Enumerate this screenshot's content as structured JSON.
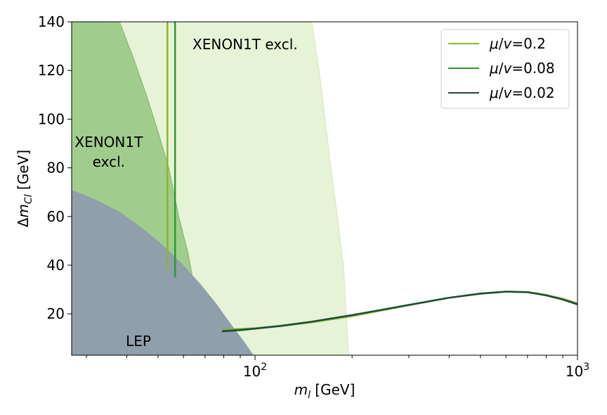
{
  "chart_data": {
    "type": "line",
    "x_scale": "log",
    "xlim": [
      27,
      1000
    ],
    "ylim": [
      3,
      140
    ],
    "xlabel": "m_l [GeV]",
    "xlabel_parts": {
      "m": "m",
      "sub": "l",
      "unit": " [GeV]"
    },
    "ylabel": "Δm_Cl [GeV]",
    "ylabel_parts": {
      "delta": "Δ",
      "m": "m",
      "sub": "Cl",
      "unit": " [GeV]"
    },
    "y_ticks": [
      20,
      40,
      60,
      80,
      100,
      120,
      140
    ],
    "x_major_ticks": [
      {
        "value": 100,
        "base": "10",
        "exp": "2"
      },
      {
        "value": 1000,
        "base": "10",
        "exp": "3"
      }
    ],
    "x_minor_ticks": [
      30,
      40,
      50,
      60,
      70,
      80,
      90,
      200,
      300,
      400,
      500,
      600,
      700,
      800,
      900
    ],
    "colors": {
      "mu_0_2": "#8db52d",
      "mu_0_08": "#2e9a2e",
      "mu_0_02": "#1e4a3a",
      "xenon_light": "#e7f3d7",
      "xenon_dark": "#a1cd8c",
      "lep": "#8f9fac"
    },
    "legend": {
      "position": "upper-right",
      "entries": [
        {
          "label_mu": "μ",
          "label_v": "v",
          "value": "=0.2",
          "color": "#8db52d"
        },
        {
          "label_mu": "μ",
          "label_v": "v",
          "value": "=0.08",
          "color": "#2e9a2e"
        },
        {
          "label_mu": "μ",
          "label_v": "v",
          "value": "=0.02",
          "color": "#1e4a3a"
        }
      ]
    },
    "series": [
      {
        "name": "μ/v=0.2",
        "color": "#8db52d",
        "x": [
          79,
          90,
          100,
          120,
          150,
          200,
          250,
          300,
          400,
          500,
          600,
          700,
          800,
          900,
          1000
        ],
        "y": [
          13.5,
          13.8,
          14.1,
          15.0,
          16.5,
          19.0,
          21.5,
          23.5,
          26.6,
          28.4,
          29.2,
          29.0,
          27.8,
          26.2,
          24.3
        ]
      },
      {
        "name": "μ/v=0.08",
        "color": "#2e9a2e",
        "x": [
          79,
          90,
          100,
          120,
          150,
          200,
          250,
          300,
          400,
          500,
          600,
          700,
          800,
          900,
          1000
        ],
        "y": [
          13.0,
          13.5,
          14.0,
          15.1,
          16.8,
          19.5,
          21.8,
          23.7,
          26.6,
          28.3,
          29.1,
          28.9,
          27.6,
          25.9,
          23.9
        ]
      },
      {
        "name": "μ/v=0.02",
        "color": "#1e4a3a",
        "x": [
          79,
          90,
          100,
          120,
          150,
          200,
          250,
          300,
          400,
          500,
          600,
          700,
          800,
          900,
          1000
        ],
        "y": [
          12.8,
          13.3,
          13.9,
          15.0,
          16.8,
          19.5,
          21.8,
          23.7,
          26.6,
          28.3,
          29.1,
          28.9,
          27.6,
          25.9,
          23.9
        ]
      }
    ],
    "vertical_lines": [
      {
        "name": "μ/v=0.2 vertical",
        "color": "#8db52d",
        "x": 53.5,
        "y_range": [
          38,
          140
        ]
      },
      {
        "name": "μ/v=0.08 vertical",
        "color": "#2e9a2e",
        "x": 56.5,
        "y_range": [
          35,
          140
        ]
      }
    ],
    "regions": [
      {
        "name": "XENON1T light exclusion",
        "color": "#e7f3d7",
        "boundary_x": [
          150,
          158,
          165,
          172,
          180,
          188,
          192,
          195
        ],
        "boundary_y": [
          140,
          120,
          100,
          80,
          60,
          40,
          20,
          3
        ]
      },
      {
        "name": "XENON1T dark exclusion",
        "color": "#a1cd8c",
        "boundary_x": [
          38,
          42,
          46,
          50,
          54,
          58,
          62,
          64,
          66
        ],
        "boundary_y": [
          140,
          125,
          110,
          95,
          80,
          60,
          45,
          35,
          30
        ]
      },
      {
        "name": "LEP exclusion",
        "color": "#8f9fac",
        "boundary_x": [
          27,
          32,
          38,
          45,
          52,
          60,
          68,
          76,
          84,
          92,
          99
        ],
        "boundary_y": [
          71,
          67,
          62,
          55,
          48,
          40,
          32,
          24,
          16,
          9,
          3
        ]
      }
    ],
    "annotations": {
      "xenon_light": "XENON1T excl.",
      "xenon_dark_line1": "XENON1T",
      "xenon_dark_line2": "excl.",
      "lep": "LEP"
    }
  }
}
